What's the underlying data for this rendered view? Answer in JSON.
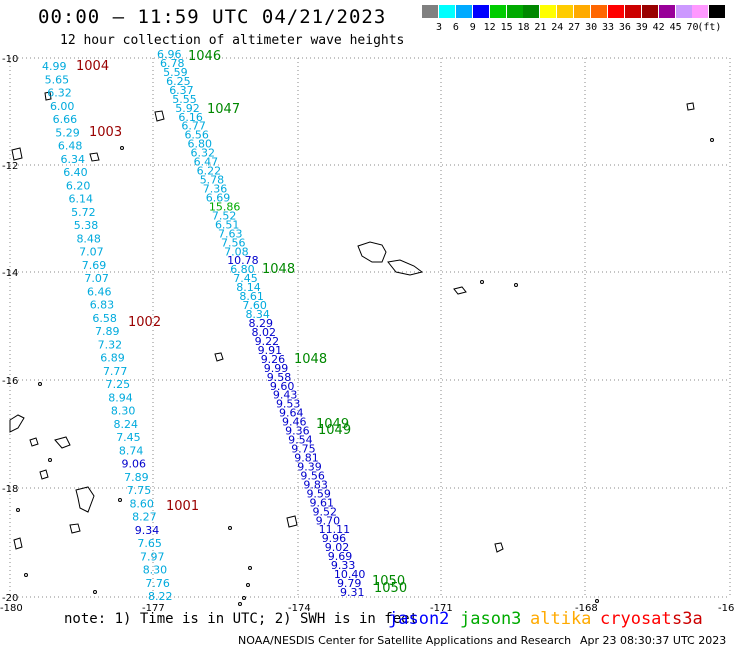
{
  "header": {
    "title": "00:00 — 11:59 UTC 04/21/2023",
    "subtitle": "12 hour collection of altimeter wave heights"
  },
  "legend": {
    "colors": [
      "#808080",
      "#00ffff",
      "#00aaff",
      "#0000ff",
      "#00cc00",
      "#00aa00",
      "#008800",
      "#ffff00",
      "#ffcc00",
      "#ffaa00",
      "#ff6600",
      "#ff0000",
      "#cc0000",
      "#990000",
      "#990099",
      "#cc99ff",
      "#ff99ff",
      "#000000"
    ],
    "labels": [
      "3",
      "6",
      "9",
      "12",
      "15",
      "18",
      "21",
      "24",
      "27",
      "30",
      "33",
      "36",
      "39",
      "42",
      "45",
      "70",
      "(ft)"
    ]
  },
  "map": {
    "lat_labels": [
      "-10",
      "-12",
      "-14",
      "-16",
      "-18",
      "-20"
    ],
    "lon_labels": [
      "-180",
      "-177",
      "-174",
      "-171",
      "-168",
      "-16"
    ],
    "wave_color_light": "#00aadd",
    "wave_color_dark": "#0000cc",
    "track_a_values": [
      "4.99",
      "5.65",
      "6.32",
      "6.00",
      "6.66",
      "5.29",
      "6.48",
      "6.34",
      "6.40",
      "6.20",
      "6.14",
      "5.72",
      "5.38",
      "8.48",
      "7.07",
      "7.69",
      "7.07",
      "6.46",
      "6.83",
      "6.58",
      "7.89",
      "7.32",
      "6.89",
      "7.77",
      "7.25",
      "8.94",
      "8.30",
      "8.24",
      "7.45",
      "8.74",
      "9.06",
      "7.89",
      "7.75",
      "8.60",
      "8.27",
      "9.34",
      "7.65",
      "7.97",
      "8.30",
      "7.76",
      "8.22"
    ],
    "track_a_dark": [
      30,
      35
    ],
    "track_b_values": [
      "6.96",
      "6.78",
      "5.59",
      "6.25",
      "6.37",
      "5.55",
      "5.92",
      "6.16",
      "6.77",
      "6.56",
      "6.80",
      "6.32",
      "6.47",
      "6.22",
      "5.78",
      "7.36",
      "6.69",
      "15.86",
      "7.52",
      "6.51",
      "7.63",
      "7.56",
      "7.08",
      "10.78",
      "6.80",
      "7.45",
      "8.14",
      "8.61",
      "7.60",
      "8.34",
      "8.29",
      "8.02",
      "9.22",
      "9.91",
      "9.26",
      "9.99",
      "9.58",
      "9.60",
      "9.43",
      "9.53",
      "9.64",
      "9.46",
      "9.36",
      "9.54",
      "9.75",
      "9.81",
      "9.39",
      "9.56",
      "9.83",
      "9.59",
      "9.61",
      "9.52",
      "9.70",
      "11.11",
      "9.96",
      "9.02",
      "9.69",
      "9.33",
      "10.40",
      "9.79",
      "9.31"
    ],
    "track_b_dark": [
      23,
      30,
      31,
      32,
      33,
      34,
      35,
      36,
      37,
      38,
      39,
      40,
      41,
      42,
      43,
      44,
      45,
      46,
      47,
      48,
      49,
      50,
      51,
      52,
      53,
      54,
      55,
      56,
      57,
      58,
      59,
      60
    ],
    "track_b_green": [
      17
    ],
    "track_labels": [
      {
        "text": "1004",
        "color": "#990000"
      },
      {
        "text": "1003",
        "color": "#990000"
      },
      {
        "text": "1002",
        "color": "#990000"
      },
      {
        "text": "1001",
        "color": "#990000"
      },
      {
        "text": "1046",
        "color": "#008800"
      },
      {
        "text": "1047",
        "color": "#008800"
      },
      {
        "text": "1048",
        "color": "#008800"
      },
      {
        "text": "1048",
        "color": "#008800"
      },
      {
        "text": "1049",
        "color": "#008800"
      },
      {
        "text": "1049",
        "color": "#008800"
      },
      {
        "text": "1050",
        "color": "#008800"
      },
      {
        "text": "1050",
        "color": "#008800"
      }
    ]
  },
  "footer": {
    "note": "note: 1) Time is in UTC; 2) SWH is in feet",
    "satellites": [
      {
        "name": "jason2",
        "color": "#0000ff"
      },
      {
        "name": "jason3",
        "color": "#00aa00"
      },
      {
        "name": "altika",
        "color": "#ffaa00"
      },
      {
        "name": "cryosat",
        "color": "#ff0000"
      },
      {
        "name": "s3a",
        "color": "#cc0000"
      }
    ],
    "credit": "NOAA/NESDIS Center for Satellite Applications and Research",
    "timestamp": "Apr 23 08:30:37 UTC 2023"
  }
}
